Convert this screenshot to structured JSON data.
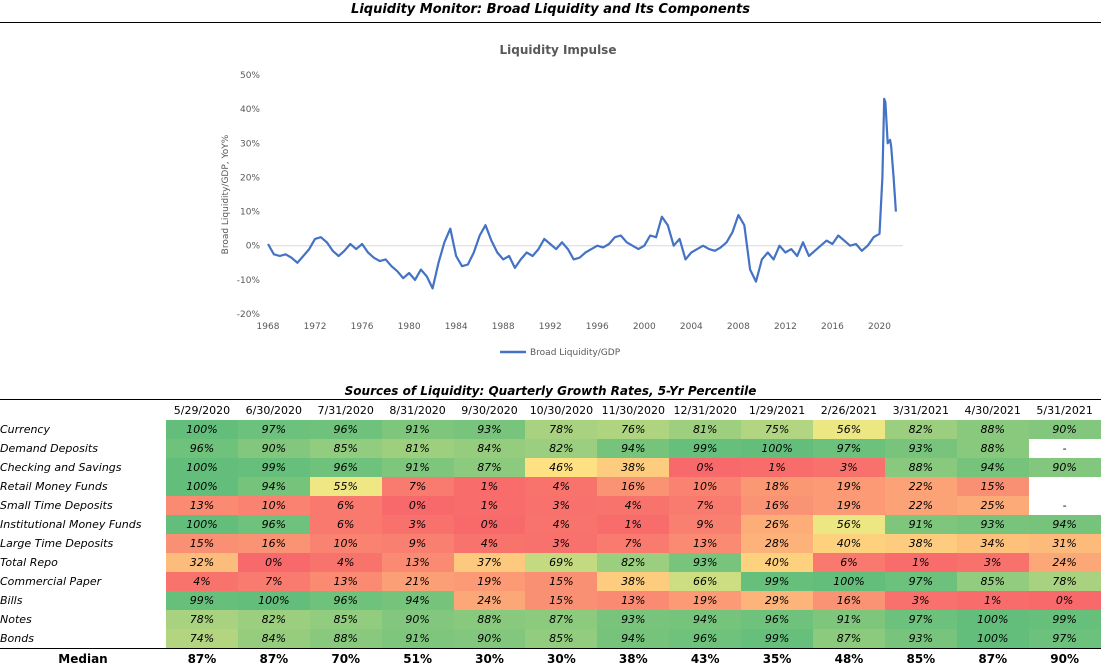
{
  "page": {
    "title": "Liquidity Monitor: Broad Liquidity and Its Components"
  },
  "chart_data": {
    "type": "line",
    "title": "Liquidity Impulse",
    "xlabel": "",
    "ylabel": "Broad Liquidity/GDP, YoY%",
    "ylim": [
      -20,
      50
    ],
    "yticks": [
      -20,
      -10,
      0,
      10,
      20,
      30,
      40,
      50
    ],
    "ytick_labels": [
      "-20%",
      "-10%",
      "0%",
      "10%",
      "20%",
      "30%",
      "40%",
      "50%"
    ],
    "xlim": [
      1968,
      2022
    ],
    "xticks": [
      1968,
      1972,
      1976,
      1980,
      1984,
      1988,
      1992,
      1996,
      2000,
      2004,
      2008,
      2012,
      2016,
      2020
    ],
    "grid": "zero line only",
    "legend": "bottom-center",
    "series": [
      {
        "name": "Broad Liquidity/GDP",
        "color": "#4472C4",
        "x": [
          1968.0,
          1968.5,
          1969.0,
          1969.5,
          1970.0,
          1970.5,
          1971.0,
          1971.5,
          1972.0,
          1972.5,
          1973.0,
          1973.5,
          1974.0,
          1974.5,
          1975.0,
          1975.5,
          1976.0,
          1976.5,
          1977.0,
          1977.5,
          1978.0,
          1978.5,
          1979.0,
          1979.5,
          1980.0,
          1980.5,
          1981.0,
          1981.5,
          1982.0,
          1982.5,
          1983.0,
          1983.5,
          1984.0,
          1984.5,
          1985.0,
          1985.5,
          1986.0,
          1986.5,
          1987.0,
          1987.5,
          1988.0,
          1988.5,
          1989.0,
          1989.5,
          1990.0,
          1990.5,
          1991.0,
          1991.5,
          1992.0,
          1992.5,
          1993.0,
          1993.5,
          1994.0,
          1994.5,
          1995.0,
          1995.5,
          1996.0,
          1996.5,
          1997.0,
          1997.5,
          1998.0,
          1998.5,
          1999.0,
          1999.5,
          2000.0,
          2000.5,
          2001.0,
          2001.5,
          2002.0,
          2002.5,
          2003.0,
          2003.5,
          2004.0,
          2004.5,
          2005.0,
          2005.5,
          2006.0,
          2006.5,
          2007.0,
          2007.5,
          2008.0,
          2008.5,
          2009.0,
          2009.5,
          2010.0,
          2010.5,
          2011.0,
          2011.5,
          2012.0,
          2012.5,
          2013.0,
          2013.5,
          2014.0,
          2014.5,
          2015.0,
          2015.5,
          2016.0,
          2016.5,
          2017.0,
          2017.5,
          2018.0,
          2018.5,
          2019.0,
          2019.5,
          2020.0,
          2020.25,
          2020.4,
          2020.5,
          2020.7,
          2020.9,
          2021.0,
          2021.2,
          2021.4
        ],
        "values": [
          0.5,
          -2.5,
          -3.0,
          -2.5,
          -3.5,
          -5.0,
          -3.0,
          -1.0,
          2.0,
          2.5,
          1.0,
          -1.5,
          -3.0,
          -1.5,
          0.5,
          -1.0,
          0.5,
          -2.0,
          -3.5,
          -4.5,
          -4.0,
          -6.0,
          -7.5,
          -9.5,
          -8.0,
          -10.0,
          -7.0,
          -9.0,
          -12.5,
          -5.0,
          1.0,
          5.0,
          -3.0,
          -6.0,
          -5.5,
          -2.0,
          3.0,
          6.0,
          1.5,
          -2.0,
          -4.0,
          -3.0,
          -6.5,
          -4.0,
          -2.0,
          -3.0,
          -1.0,
          2.0,
          0.5,
          -1.0,
          1.0,
          -1.0,
          -4.0,
          -3.5,
          -2.0,
          -1.0,
          0.0,
          -0.5,
          0.5,
          2.5,
          3.0,
          1.0,
          0.0,
          -1.0,
          0.0,
          3.0,
          2.5,
          8.5,
          6.0,
          0.0,
          2.0,
          -4.0,
          -2.0,
          -1.0,
          0.0,
          -1.0,
          -1.5,
          -0.5,
          1.0,
          4.0,
          9.0,
          6.0,
          -7.0,
          -10.5,
          -4.0,
          -2.0,
          -4.0,
          0.0,
          -2.0,
          -1.0,
          -3.0,
          1.0,
          -3.0,
          -1.5,
          0.0,
          1.5,
          0.5,
          3.0,
          1.5,
          0.0,
          0.5,
          -1.5,
          0.0,
          2.5,
          3.5,
          20.0,
          43.0,
          42.0,
          30.0,
          31.0,
          29.0,
          20.0,
          10.0
        ]
      }
    ]
  },
  "table": {
    "title": "Sources of Liquidity: Quarterly Growth Rates, 5-Yr Percentile",
    "dates": [
      "5/29/2020",
      "6/30/2020",
      "7/31/2020",
      "8/31/2020",
      "9/30/2020",
      "10/30/2020",
      "11/30/2020",
      "12/31/2020",
      "1/29/2021",
      "2/26/2021",
      "3/31/2021",
      "4/30/2021",
      "5/31/2021"
    ],
    "rows": [
      {
        "label": "Currency",
        "values": [
          "100%",
          "97%",
          "96%",
          "91%",
          "93%",
          "78%",
          "76%",
          "81%",
          "75%",
          "56%",
          "82%",
          "88%",
          "90%"
        ]
      },
      {
        "label": "Demand Deposits",
        "values": [
          "96%",
          "90%",
          "85%",
          "81%",
          "84%",
          "82%",
          "94%",
          "99%",
          "100%",
          "97%",
          "93%",
          "88%",
          "-"
        ]
      },
      {
        "label": "Checking and Savings",
        "values": [
          "100%",
          "99%",
          "96%",
          "91%",
          "87%",
          "46%",
          "38%",
          "0%",
          "1%",
          "3%",
          "88%",
          "94%",
          "90%"
        ]
      },
      {
        "label": "Retail Money Funds",
        "values": [
          "100%",
          "94%",
          "55%",
          "7%",
          "1%",
          "4%",
          "16%",
          "10%",
          "18%",
          "19%",
          "22%",
          "15%",
          ""
        ]
      },
      {
        "label": "Small Time Deposits",
        "values": [
          "13%",
          "10%",
          "6%",
          "0%",
          "1%",
          "3%",
          "4%",
          "7%",
          "16%",
          "19%",
          "22%",
          "25%",
          "-"
        ]
      },
      {
        "label": "Institutional Money Funds",
        "values": [
          "100%",
          "96%",
          "6%",
          "3%",
          "0%",
          "4%",
          "1%",
          "9%",
          "26%",
          "56%",
          "91%",
          "93%",
          "94%"
        ]
      },
      {
        "label": "Large Time Deposits",
        "values": [
          "15%",
          "16%",
          "10%",
          "9%",
          "4%",
          "3%",
          "7%",
          "13%",
          "28%",
          "40%",
          "38%",
          "34%",
          "31%"
        ]
      },
      {
        "label": "Total Repo",
        "values": [
          "32%",
          "0%",
          "4%",
          "13%",
          "37%",
          "69%",
          "82%",
          "93%",
          "40%",
          "6%",
          "1%",
          "3%",
          "24%"
        ]
      },
      {
        "label": "Commercial Paper",
        "values": [
          "4%",
          "7%",
          "13%",
          "21%",
          "19%",
          "15%",
          "38%",
          "66%",
          "99%",
          "100%",
          "97%",
          "85%",
          "78%"
        ]
      },
      {
        "label": "Bills",
        "values": [
          "99%",
          "100%",
          "96%",
          "94%",
          "24%",
          "15%",
          "13%",
          "19%",
          "29%",
          "16%",
          "3%",
          "1%",
          "0%"
        ]
      },
      {
        "label": "Notes",
        "values": [
          "78%",
          "82%",
          "85%",
          "90%",
          "88%",
          "87%",
          "93%",
          "94%",
          "96%",
          "91%",
          "97%",
          "100%",
          "99%"
        ]
      },
      {
        "label": "Bonds",
        "values": [
          "74%",
          "84%",
          "88%",
          "91%",
          "90%",
          "85%",
          "94%",
          "96%",
          "99%",
          "87%",
          "93%",
          "100%",
          "97%"
        ]
      }
    ],
    "median": {
      "label": "Median",
      "values": [
        "87%",
        "87%",
        "70%",
        "51%",
        "30%",
        "30%",
        "38%",
        "43%",
        "35%",
        "48%",
        "85%",
        "87%",
        "90%"
      ]
    }
  }
}
